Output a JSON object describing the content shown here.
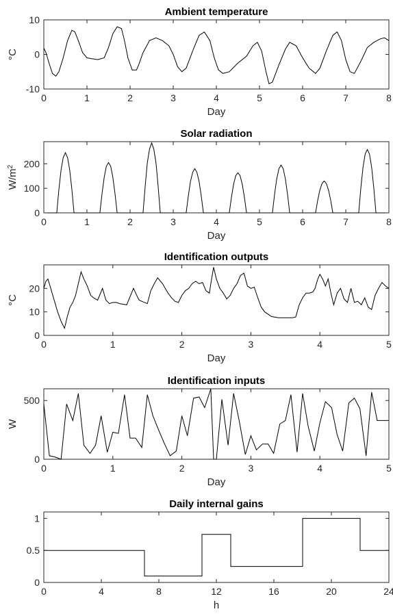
{
  "chart_data": [
    {
      "type": "line",
      "title": "Ambient temperature",
      "xlabel": "Day",
      "ylabel": "°C",
      "xlim": [
        0,
        8
      ],
      "ylim": [
        -10,
        10
      ],
      "xticks": [
        0,
        1,
        2,
        3,
        4,
        5,
        6,
        7,
        8
      ],
      "yticks": [
        -10,
        0,
        10
      ],
      "grid": false,
      "series": [
        {
          "x": [
            0,
            0.05,
            0.12,
            0.2,
            0.28,
            0.35,
            0.45,
            0.55,
            0.65,
            0.72,
            0.8,
            0.9,
            1.0,
            1.1,
            1.25,
            1.4,
            1.5,
            1.6,
            1.7,
            1.8,
            1.87,
            1.95,
            2.05,
            2.15,
            2.2,
            2.3,
            2.45,
            2.6,
            2.75,
            2.9,
            3.0,
            3.1,
            3.2,
            3.3,
            3.45,
            3.6,
            3.72,
            3.85,
            3.95,
            4.05,
            4.15,
            4.3,
            4.5,
            4.7,
            4.85,
            4.95,
            5.05,
            5.15,
            5.22,
            5.3,
            5.45,
            5.6,
            5.7,
            5.85,
            6.0,
            6.15,
            6.3,
            6.4,
            6.55,
            6.7,
            6.8,
            6.9,
            7.0,
            7.1,
            7.2,
            7.35,
            7.5,
            7.65,
            7.8,
            7.9,
            8.0
          ],
          "y": [
            1.8,
            0.5,
            -2.5,
            -5.5,
            -6.3,
            -5,
            -1,
            4,
            7,
            6.5,
            4,
            0.5,
            -1,
            -1.2,
            -1.5,
            -1,
            2,
            6,
            8,
            7.5,
            4,
            -1,
            -4.5,
            -4.5,
            -3,
            0.5,
            4,
            4.8,
            4,
            2.5,
            0,
            -3.5,
            -5,
            -4,
            1,
            5.5,
            6.5,
            4,
            -1,
            -4.5,
            -5.5,
            -5,
            -2.5,
            -0.5,
            2.5,
            3.5,
            1,
            -5,
            -8.5,
            -8,
            -3,
            1.5,
            3.5,
            2.5,
            -1,
            -4,
            -5.5,
            -4,
            1,
            5.5,
            6.5,
            4,
            -1.5,
            -5,
            -5.5,
            -2,
            2,
            3.5,
            4.5,
            4.8,
            4
          ]
        }
      ]
    },
    {
      "type": "line",
      "title": "Solar radiation",
      "xlabel": "Day",
      "ylabel": "W/m",
      "ylabel_sup": "2",
      "xlim": [
        0,
        8
      ],
      "ylim": [
        0,
        290
      ],
      "xticks": [
        0,
        1,
        2,
        3,
        4,
        5,
        6,
        7,
        8
      ],
      "yticks": [
        0,
        100,
        200
      ],
      "grid": false,
      "series": [
        {
          "x": [
            0,
            0.3,
            0.35,
            0.4,
            0.45,
            0.5,
            0.55,
            0.6,
            0.65,
            0.7,
            1.3,
            1.35,
            1.4,
            1.45,
            1.5,
            1.55,
            1.6,
            1.65,
            1.7,
            2.3,
            2.35,
            2.4,
            2.45,
            2.5,
            2.55,
            2.6,
            2.65,
            2.7,
            3.3,
            3.35,
            3.4,
            3.45,
            3.5,
            3.55,
            3.6,
            3.65,
            3.7,
            4.3,
            4.35,
            4.4,
            4.45,
            4.5,
            4.55,
            4.6,
            4.65,
            4.7,
            5.3,
            5.35,
            5.4,
            5.45,
            5.5,
            5.55,
            5.6,
            5.65,
            5.7,
            6.3,
            6.35,
            6.4,
            6.45,
            6.5,
            6.55,
            6.6,
            6.65,
            6.7,
            7.3,
            7.35,
            7.4,
            7.45,
            7.5,
            7.55,
            7.6,
            7.65,
            7.7,
            8.0
          ],
          "y": [
            0,
            0,
            95,
            175,
            225,
            245,
            225,
            175,
            95,
            0,
            0,
            80,
            145,
            190,
            205,
            190,
            145,
            80,
            0,
            0,
            110,
            205,
            260,
            285,
            260,
            205,
            110,
            0,
            0,
            70,
            128,
            165,
            180,
            165,
            128,
            70,
            0,
            0,
            63,
            117,
            152,
            163,
            152,
            117,
            63,
            0,
            0,
            75,
            139,
            180,
            195,
            180,
            139,
            75,
            0,
            0,
            51,
            93,
            120,
            130,
            120,
            93,
            51,
            0,
            0,
            100,
            186,
            240,
            258,
            240,
            186,
            100,
            0,
            0
          ]
        }
      ]
    },
    {
      "type": "line",
      "title": "Identification outputs",
      "xlabel": "Day",
      "ylabel": "°C",
      "xlim": [
        0,
        5
      ],
      "ylim": [
        0,
        30
      ],
      "xticks": [
        0,
        1,
        2,
        3,
        4,
        5
      ],
      "yticks": [
        0,
        10,
        20
      ],
      "grid": false,
      "series": [
        {
          "x": [
            0,
            0.03,
            0.06,
            0.1,
            0.15,
            0.2,
            0.25,
            0.3,
            0.34,
            0.38,
            0.42,
            0.46,
            0.5,
            0.54,
            0.58,
            0.63,
            0.68,
            0.72,
            0.78,
            0.85,
            0.9,
            0.95,
            1.0,
            1.05,
            1.1,
            1.2,
            1.3,
            1.33,
            1.38,
            1.42,
            1.46,
            1.5,
            1.55,
            1.6,
            1.65,
            1.72,
            1.8,
            1.85,
            1.9,
            1.95,
            2.0,
            2.05,
            2.1,
            2.15,
            2.2,
            2.25,
            2.3,
            2.35,
            2.4,
            2.42,
            2.46,
            2.5,
            2.55,
            2.6,
            2.65,
            2.7,
            2.75,
            2.8,
            2.85,
            2.9,
            2.95,
            3.0,
            3.05,
            3.1,
            3.15,
            3.2,
            3.3,
            3.4,
            3.5,
            3.6,
            3.65,
            3.7,
            3.75,
            3.8,
            3.85,
            3.9,
            3.93,
            3.97,
            4.0,
            4.04,
            4.08,
            4.12,
            4.16,
            4.2,
            4.25,
            4.3,
            4.35,
            4.4,
            4.45,
            4.5,
            4.55,
            4.6,
            4.65,
            4.7,
            4.75,
            4.8,
            4.85,
            4.9,
            4.95,
            5.0
          ],
          "y": [
            20,
            23,
            24,
            20,
            15,
            10,
            6,
            3,
            8,
            12,
            14,
            17,
            22,
            27,
            24,
            21,
            17,
            16,
            15,
            20,
            15,
            13.5,
            14,
            14,
            13.5,
            13,
            20,
            18,
            15,
            14.5,
            14,
            13.5,
            19,
            22,
            24.5,
            22,
            18,
            16,
            14.5,
            14,
            17,
            19,
            20,
            22,
            23,
            22,
            22.5,
            19,
            18,
            22,
            29,
            24,
            20,
            18,
            15.5,
            17,
            20,
            22,
            25.5,
            26.5,
            21,
            20,
            20.5,
            16,
            12,
            10,
            8,
            7.5,
            7.5,
            7.5,
            7.8,
            13,
            16,
            18,
            18,
            18.5,
            20,
            24,
            26,
            24,
            21,
            24,
            18,
            13,
            18,
            20,
            15.5,
            14,
            20,
            14,
            14.5,
            13,
            16,
            12,
            11,
            17,
            20,
            22.5,
            21,
            20
          ]
        }
      ]
    },
    {
      "type": "line",
      "title": "Identification inputs",
      "xlabel": "Day",
      "ylabel": "W",
      "xlim": [
        0,
        5
      ],
      "ylim": [
        0,
        600
      ],
      "xticks": [
        0,
        1,
        2,
        3,
        4,
        5
      ],
      "yticks": [
        0,
        500
      ],
      "grid": false,
      "series": [
        {
          "x": [
            0,
            0.08,
            0.16,
            0.25,
            0.33,
            0.42,
            0.5,
            0.58,
            0.67,
            0.75,
            0.83,
            0.92,
            1.0,
            1.08,
            1.17,
            1.25,
            1.33,
            1.42,
            1.5,
            1.58,
            1.67,
            1.75,
            1.83,
            1.92,
            2.0,
            2.08,
            2.17,
            2.25,
            2.33,
            2.42,
            2.46,
            2.5,
            2.58,
            2.67,
            2.75,
            2.83,
            2.92,
            3.0,
            3.08,
            3.17,
            3.25,
            3.33,
            3.42,
            3.5,
            3.58,
            3.67,
            3.75,
            3.83,
            3.92,
            4.0,
            4.08,
            4.17,
            4.25,
            4.33,
            4.42,
            4.5,
            4.58,
            4.67,
            4.75,
            4.83,
            4.92,
            5.0
          ],
          "y": [
            470,
            30,
            20,
            0,
            470,
            330,
            560,
            120,
            50,
            120,
            370,
            60,
            230,
            220,
            550,
            180,
            180,
            100,
            550,
            370,
            240,
            130,
            30,
            70,
            370,
            200,
            520,
            530,
            440,
            600,
            0,
            0,
            510,
            120,
            560,
            330,
            40,
            200,
            80,
            130,
            130,
            50,
            300,
            330,
            550,
            60,
            560,
            280,
            70,
            310,
            490,
            440,
            210,
            70,
            480,
            520,
            430,
            30,
            570,
            330,
            330,
            330
          ]
        }
      ]
    },
    {
      "type": "line",
      "title": "Daily internal gains",
      "xlabel": "h",
      "ylabel": "",
      "xlim": [
        0,
        24
      ],
      "ylim": [
        0,
        1.1
      ],
      "xticks": [
        0,
        4,
        8,
        12,
        16,
        20,
        24
      ],
      "yticks": [
        0,
        0.5,
        1
      ],
      "grid": false,
      "series": [
        {
          "x": [
            0,
            7,
            7,
            11,
            11,
            13,
            13,
            18,
            18,
            22,
            22,
            24
          ],
          "y": [
            0.5,
            0.5,
            0.1,
            0.1,
            0.75,
            0.75,
            0.25,
            0.25,
            1.0,
            1.0,
            0.5,
            0.5
          ]
        }
      ]
    }
  ]
}
